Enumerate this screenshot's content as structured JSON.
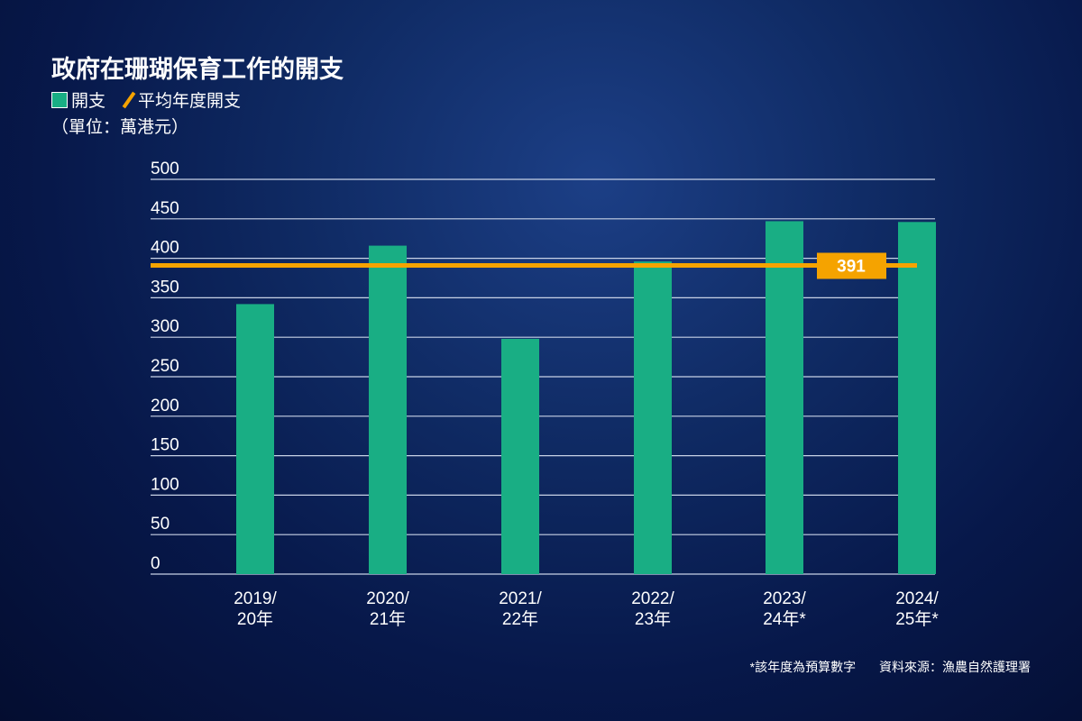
{
  "chart_data": {
    "type": "bar",
    "title": "政府在珊瑚保育工作的開支",
    "legend": [
      "開支",
      "平均年度開支"
    ],
    "unit": "（單位：萬港元）",
    "categories": [
      [
        "2019/",
        "20年"
      ],
      [
        "2020/",
        "21年"
      ],
      [
        "2021/",
        "22年"
      ],
      [
        "2022/",
        "23年"
      ],
      [
        "2023/",
        "24年*"
      ],
      [
        "2024/",
        "25年*"
      ]
    ],
    "values": [
      342,
      416,
      298,
      396,
      447,
      446
    ],
    "average": 391,
    "average_label": "391",
    "ylim": [
      0,
      500
    ],
    "yticks": [
      0,
      50,
      100,
      150,
      200,
      250,
      300,
      350,
      400,
      450,
      500
    ],
    "grid": true,
    "legend_placement": "top-left",
    "colors": {
      "bar": "#19ae84",
      "average": "#f5a300"
    }
  },
  "footnote": "*該年度為預算數字",
  "source": "資料來源：漁農自然護理署"
}
